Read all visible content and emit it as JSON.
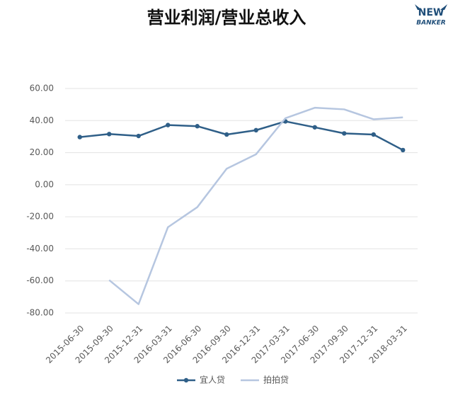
{
  "logo": {
    "top": "NEW",
    "bottom": "BANKER"
  },
  "chart_data": {
    "type": "line",
    "title": "营业利润/营业总收入",
    "categories": [
      "2015-06-30",
      "2015-09-30",
      "2015-12-31",
      "2016-03-31",
      "2016-06-30",
      "2016-09-30",
      "2016-12-31",
      "2017-03-31",
      "2017-06-30",
      "2017-09-30",
      "2017-12-31",
      "2018-03-31"
    ],
    "series": [
      {
        "name": "宜人贷",
        "color": "#2f5f88",
        "markers": true,
        "values": [
          29.7,
          31.6,
          30.4,
          37.2,
          36.5,
          31.3,
          34.0,
          39.5,
          35.8,
          32.0,
          31.3,
          21.6
        ]
      },
      {
        "name": "拍拍贷",
        "color": "#b6c6e0",
        "markers": false,
        "values": [
          null,
          -59.5,
          -74.5,
          -26.5,
          -14.0,
          10.0,
          19.0,
          41.5,
          48.0,
          47.0,
          40.8,
          42.0
        ]
      }
    ],
    "ylim": [
      -80,
      60
    ],
    "yticks": [
      {
        "value": -80,
        "label": "-80.00"
      },
      {
        "value": -60,
        "label": "-60.00"
      },
      {
        "value": -40,
        "label": "-40.00"
      },
      {
        "value": -20,
        "label": "-20.00"
      },
      {
        "value": 0,
        "label": "0.00"
      },
      {
        "value": 20,
        "label": "20.00"
      },
      {
        "value": 40,
        "label": "40.00"
      },
      {
        "value": 60,
        "label": "60.00"
      }
    ],
    "grid": true,
    "legend": "bottom"
  }
}
